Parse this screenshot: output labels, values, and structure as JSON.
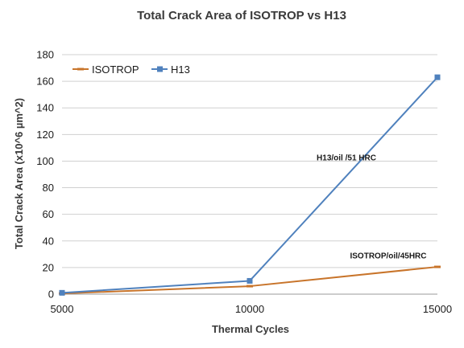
{
  "chart_data": {
    "type": "line",
    "title": "Total Crack Area of ISOTROP vs H13",
    "xlabel": "Thermal Cycles",
    "ylabel": "Total Crack Area (x10^6 µm^2)",
    "x": [
      5000,
      10000,
      15000
    ],
    "xlim": [
      5000,
      15000
    ],
    "ylim": [
      0,
      180
    ],
    "x_ticks": [
      "5000",
      "10000",
      "15000"
    ],
    "y_ticks": [
      "0",
      "20",
      "40",
      "60",
      "80",
      "100",
      "120",
      "140",
      "160",
      "180"
    ],
    "grid": true,
    "legend_position": "top-left",
    "series": [
      {
        "name": "ISOTROP",
        "values": [
          0.5,
          6,
          20.5
        ],
        "color": "#c8742a",
        "marker": "dash"
      },
      {
        "name": "H13",
        "values": [
          1,
          10,
          163
        ],
        "color": "#4f81bd",
        "marker": "square"
      }
    ],
    "annotations": [
      {
        "text": "H13/oil /51 HRC",
        "series": "H13"
      },
      {
        "text": "ISOTROP/oil/45HRC",
        "series": "ISOTROP"
      }
    ]
  }
}
